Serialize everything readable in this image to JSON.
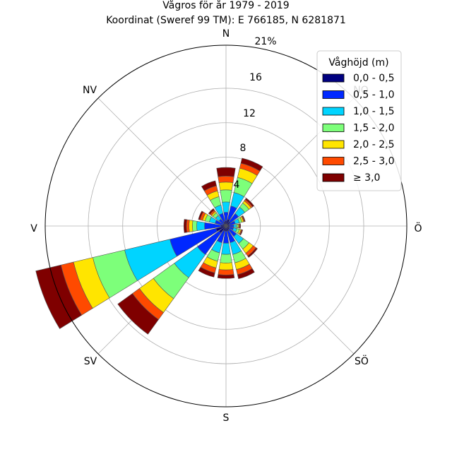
{
  "chart_data": {
    "type": "wind-rose",
    "title_line1": "Vågros för år 1979 - 2019",
    "title_line2": "Koordinat (Sweref 99 TM): E 766185, N 6281871",
    "compass_labels": [
      "N",
      "NO",
      "Ö",
      "SÖ",
      "S",
      "SV",
      "V",
      "NV"
    ],
    "radial_ticks": [
      "4",
      "8",
      "12",
      "16",
      "21%"
    ],
    "rmax": 21,
    "legend_title": "Våghöjd (m)",
    "bins": [
      {
        "label": "0,0 - 0,5",
        "color": "#00007f"
      },
      {
        "label": "0,5 - 1,0",
        "color": "#0028ff"
      },
      {
        "label": "1,0 - 1,5",
        "color": "#00d4ff"
      },
      {
        "label": "1,5 - 2,0",
        "color": "#7dff7a"
      },
      {
        "label": "2,0 - 2,5",
        "color": "#ffe500"
      },
      {
        "label": "2,5 - 3,0",
        "color": "#ff4a00"
      },
      {
        "label": "≥ 3,0",
        "color": "#7f0000"
      }
    ],
    "sectors": [
      {
        "direction": 0,
        "values": [
          0.6,
          1.0,
          1.2,
          1.4,
          0.9,
          0.7,
          1.0
        ]
      },
      {
        "direction": 22.5,
        "values": [
          0.8,
          1.6,
          1.6,
          1.8,
          1.1,
          0.6,
          0.6
        ]
      },
      {
        "direction": 45,
        "values": [
          0.6,
          1.2,
          0.9,
          0.6,
          0.3,
          0.2,
          0.2
        ]
      },
      {
        "direction": 67.5,
        "values": [
          0.4,
          0.7,
          0.5,
          0.3,
          0.2,
          0.1,
          0.1
        ]
      },
      {
        "direction": 90,
        "values": [
          0.4,
          0.5,
          0.3,
          0.2,
          0.1,
          0.1,
          0.1
        ]
      },
      {
        "direction": 112.5,
        "values": [
          0.4,
          0.5,
          0.4,
          0.3,
          0.2,
          0.1,
          0.1
        ]
      },
      {
        "direction": 135,
        "values": [
          0.5,
          1.0,
          1.0,
          0.8,
          0.6,
          0.4,
          0.2
        ]
      },
      {
        "direction": 157.5,
        "values": [
          0.6,
          1.4,
          1.4,
          1.0,
          0.8,
          0.6,
          0.5
        ]
      },
      {
        "direction": 180,
        "values": [
          0.6,
          1.4,
          1.3,
          1.0,
          0.8,
          0.6,
          0.4
        ]
      },
      {
        "direction": 202.5,
        "values": [
          0.6,
          1.4,
          1.2,
          1.0,
          0.8,
          0.6,
          0.5
        ]
      },
      {
        "direction": 225,
        "values": [
          1.0,
          3.1,
          3.3,
          3.0,
          2.0,
          1.0,
          2.1
        ]
      },
      {
        "direction": 247.5,
        "values": [
          1.2,
          5.5,
          5.4,
          3.8,
          2.3,
          1.5,
          3.0
        ]
      },
      {
        "direction": 270,
        "values": [
          0.6,
          1.9,
          0.9,
          0.5,
          0.4,
          0.3,
          0.3
        ]
      },
      {
        "direction": 292.5,
        "values": [
          0.4,
          0.9,
          0.7,
          0.5,
          0.3,
          0.3,
          0.2
        ]
      },
      {
        "direction": 315,
        "values": [
          0.3,
          0.7,
          0.5,
          0.4,
          0.2,
          0.2,
          0.2
        ]
      },
      {
        "direction": 337.5,
        "values": [
          0.5,
          1.0,
          1.0,
          1.0,
          0.7,
          0.6,
          0.6
        ]
      }
    ]
  }
}
